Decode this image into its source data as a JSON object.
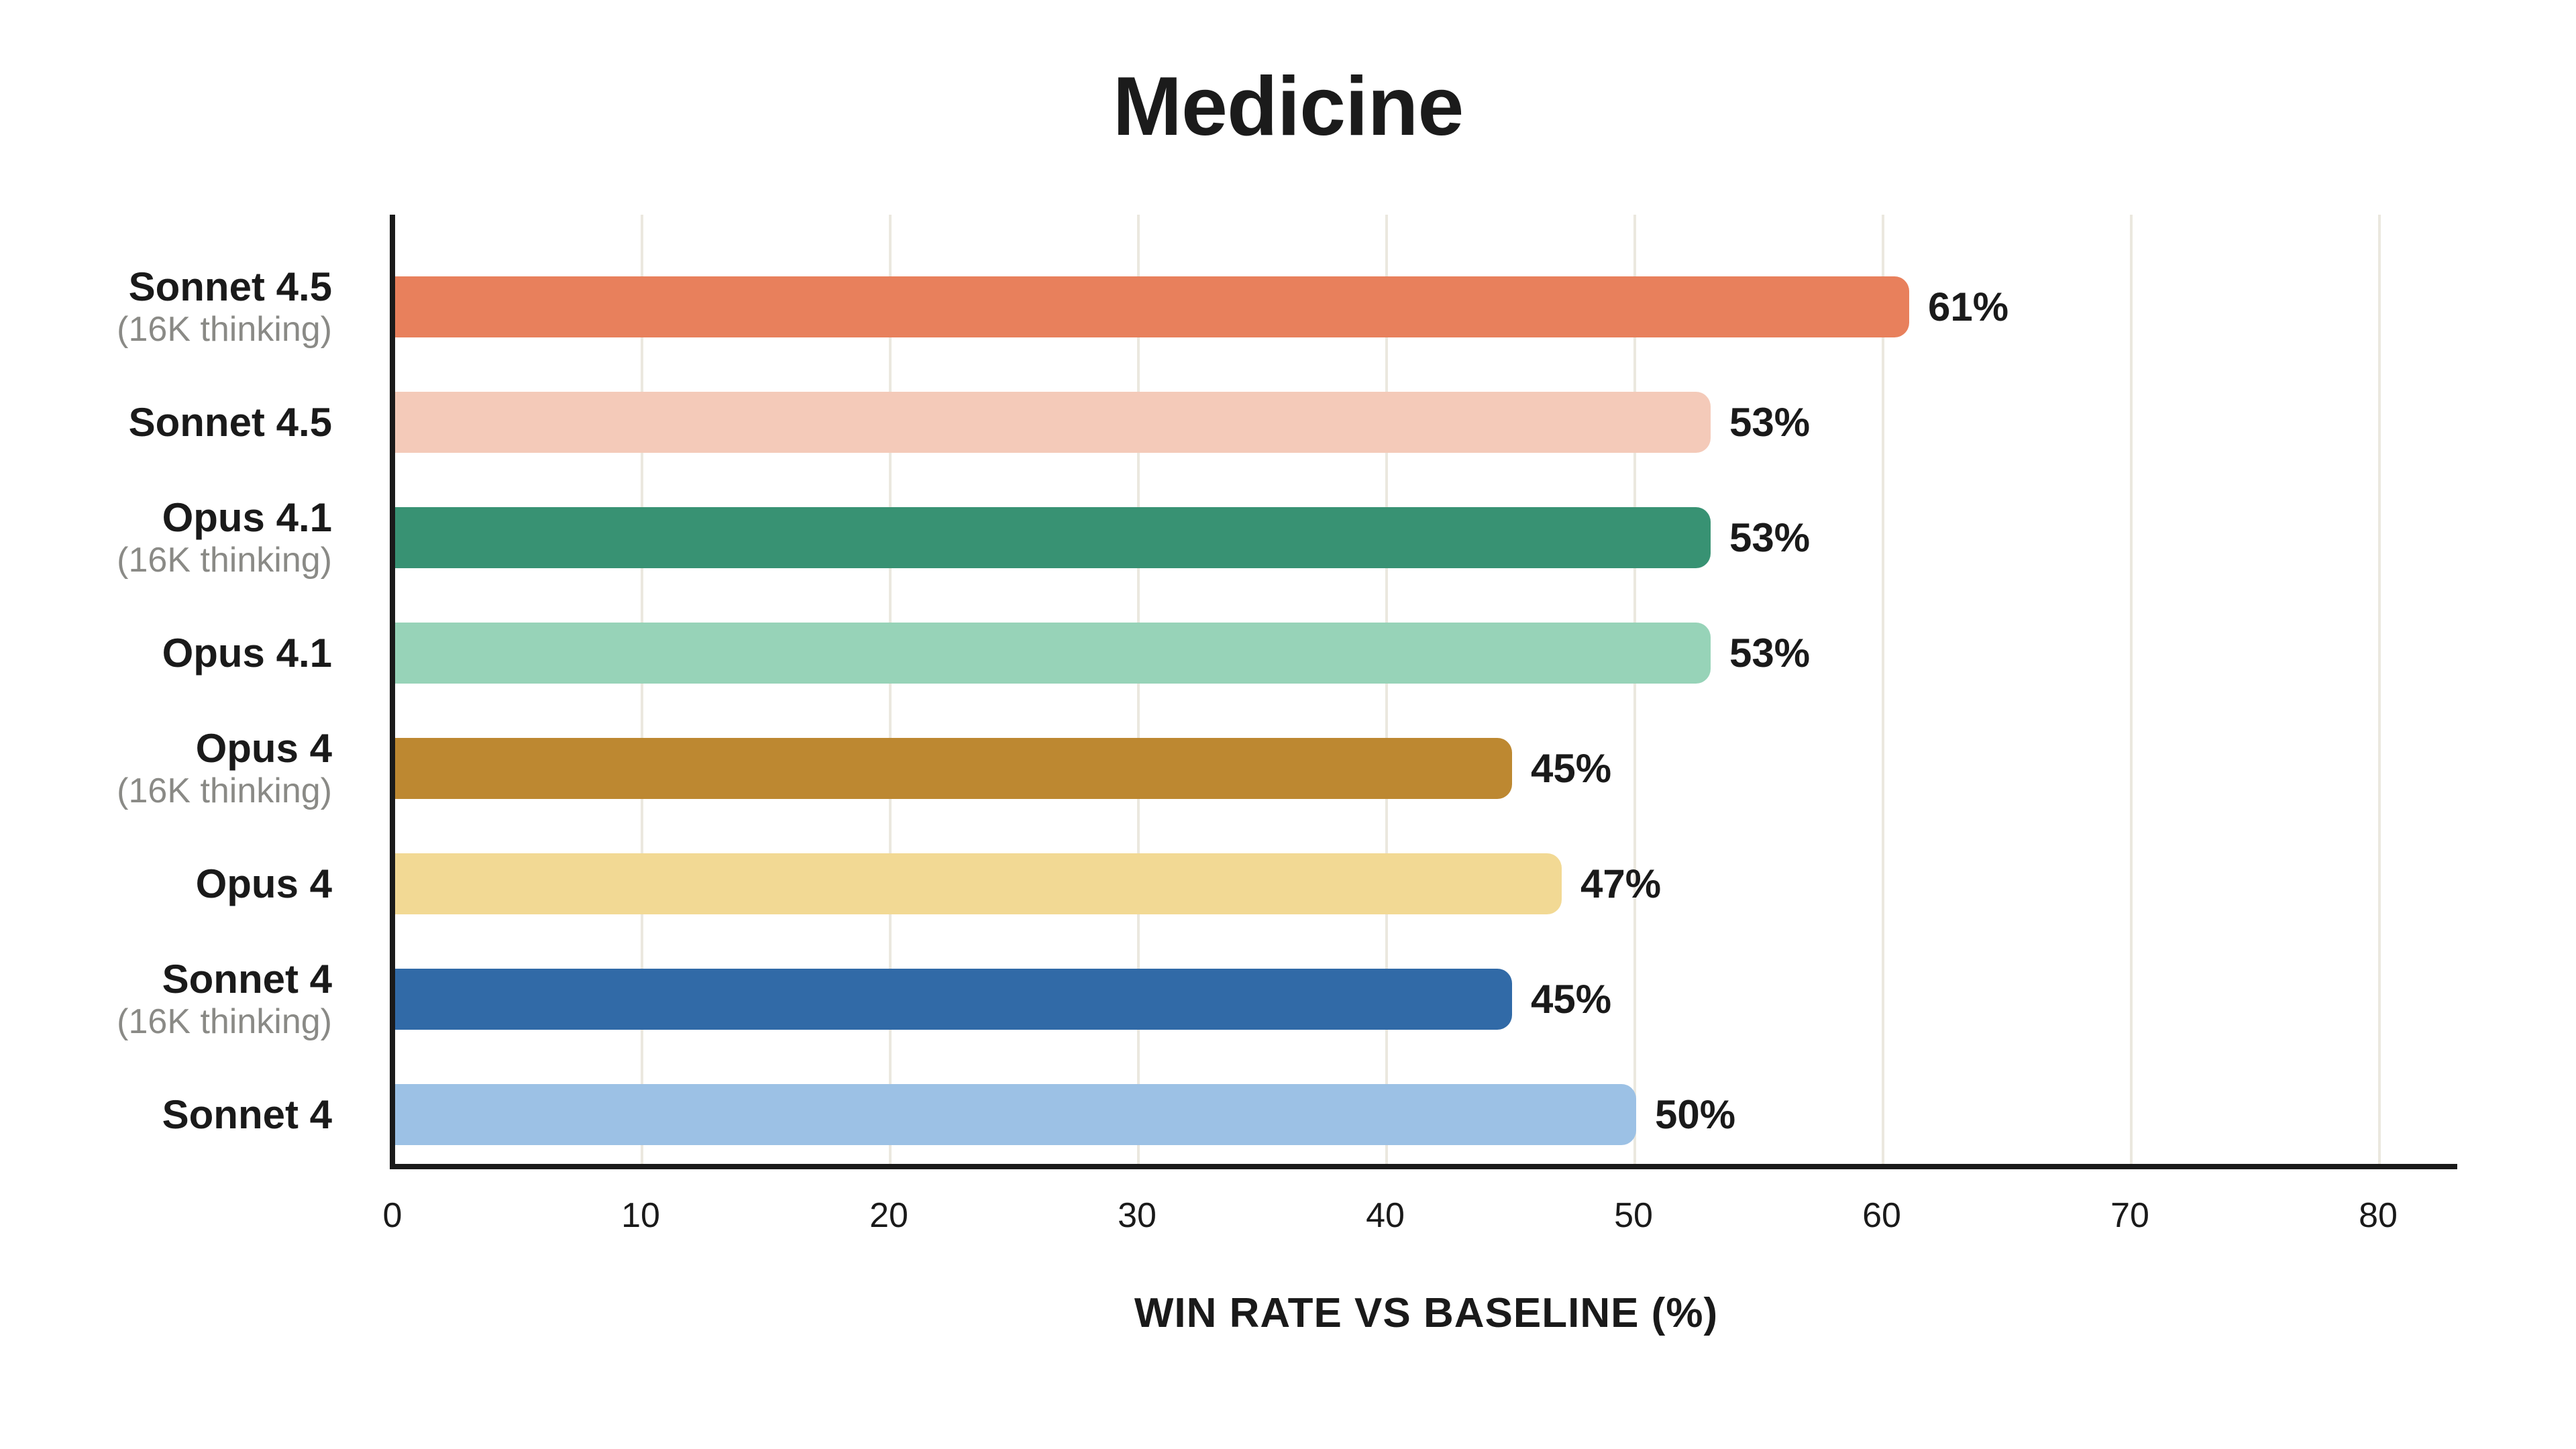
{
  "title": "Medicine",
  "x_axis_title": "WIN RATE VS BASELINE (%)",
  "colors": {
    "text": "#1a1a1a",
    "subtext": "#8a8a86",
    "grid": "#ebe8df",
    "axis": "#1a1a1a",
    "background": "#ffffff"
  },
  "chart_data": {
    "type": "bar",
    "orientation": "horizontal",
    "title": "Medicine",
    "xlabel": "WIN RATE VS BASELINE (%)",
    "xlim": [
      0,
      83
    ],
    "x_ticks": [
      0,
      10,
      20,
      30,
      40,
      50,
      60,
      70,
      80
    ],
    "grid": "vertical gridlines at each x tick, drawn behind bars",
    "legend": "none",
    "categories": [
      "Sonnet 4.5 (16K thinking)",
      "Sonnet 4.5",
      "Opus 4.1 (16K thinking)",
      "Opus 4.1",
      "Opus 4 (16K thinking)",
      "Opus 4",
      "Sonnet 4 (16K thinking)",
      "Sonnet 4"
    ],
    "series": [
      {
        "name": "Win rate vs baseline (%)",
        "values": [
          61,
          53,
          53,
          53,
          45,
          47,
          45,
          50
        ]
      }
    ],
    "bars": [
      {
        "label": "Sonnet 4.5",
        "sublabel": "(16K thinking)",
        "value": 61,
        "display": "61%",
        "color": "#e8805c"
      },
      {
        "label": "Sonnet 4.5",
        "sublabel": "",
        "value": 53,
        "display": "53%",
        "color": "#f4cab9"
      },
      {
        "label": "Opus 4.1",
        "sublabel": "(16K thinking)",
        "value": 53,
        "display": "53%",
        "color": "#389273"
      },
      {
        "label": "Opus 4.1",
        "sublabel": "",
        "value": 53,
        "display": "53%",
        "color": "#97d3b8"
      },
      {
        "label": "Opus 4",
        "sublabel": "(16K thinking)",
        "value": 45,
        "display": "45%",
        "color": "#bd8831"
      },
      {
        "label": "Opus 4",
        "sublabel": "",
        "value": 47,
        "display": "47%",
        "color": "#f2d994"
      },
      {
        "label": "Sonnet 4",
        "sublabel": "(16K thinking)",
        "value": 45,
        "display": "45%",
        "color": "#316aa7"
      },
      {
        "label": "Sonnet 4",
        "sublabel": "",
        "value": 50,
        "display": "50%",
        "color": "#9cc1e5"
      }
    ]
  }
}
